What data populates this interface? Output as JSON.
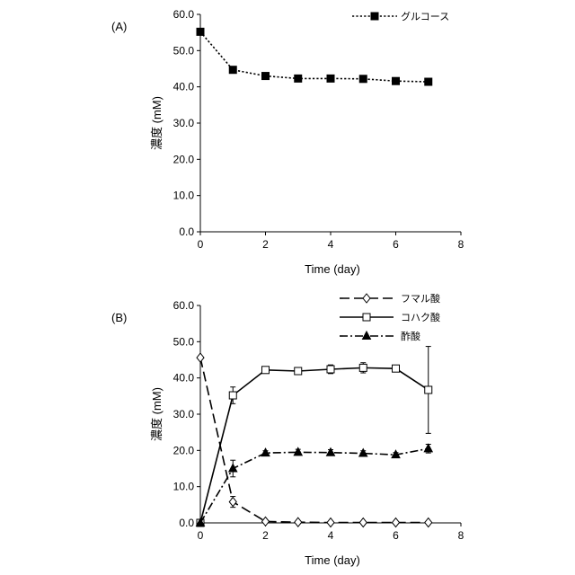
{
  "chart_data": [
    {
      "panel": "(A)",
      "type": "line",
      "xlabel": "Time (day)",
      "ylabel": "濃度 (mM)",
      "xlim": [
        0,
        8
      ],
      "ylim": [
        0,
        60
      ],
      "xticks": [
        "0",
        "2",
        "4",
        "6",
        "8"
      ],
      "yticks": [
        "0.0",
        "10.0",
        "20.0",
        "30.0",
        "40.0",
        "50.0",
        "60.0"
      ],
      "legend_position": "top-right",
      "series": [
        {
          "name": "グルコース",
          "marker": "filled-square",
          "line": "dotted",
          "x": [
            0,
            1,
            2,
            3,
            4,
            5,
            6,
            7
          ],
          "values": [
            55.2,
            44.7,
            43.0,
            42.3,
            42.3,
            42.2,
            41.6,
            41.4
          ],
          "errors": [
            0,
            0,
            0,
            0,
            0,
            0,
            0,
            0
          ]
        }
      ]
    },
    {
      "panel": "(B)",
      "type": "line",
      "xlabel": "Time (day)",
      "ylabel": "濃度 (mM)",
      "xlim": [
        0,
        8
      ],
      "ylim": [
        0,
        60
      ],
      "xticks": [
        "0",
        "2",
        "4",
        "6",
        "8"
      ],
      "yticks": [
        "0.0",
        "10.0",
        "20.0",
        "30.0",
        "40.0",
        "50.0",
        "60.0"
      ],
      "legend_position": "top-right",
      "series": [
        {
          "name": "フマル酸",
          "marker": "open-diamond",
          "line": "dashed",
          "x": [
            0,
            1,
            2,
            3,
            4,
            5,
            6,
            7
          ],
          "values": [
            45.6,
            5.8,
            0.4,
            0.2,
            0.1,
            0.1,
            0.1,
            0.1
          ],
          "errors": [
            0,
            1.5,
            0,
            0,
            0,
            0,
            0,
            0
          ]
        },
        {
          "name": "コハク酸",
          "marker": "open-square",
          "line": "solid",
          "x": [
            0,
            1,
            2,
            3,
            4,
            5,
            6,
            7
          ],
          "values": [
            0.0,
            35.2,
            42.2,
            41.9,
            42.4,
            42.8,
            42.6,
            36.7
          ],
          "errors": [
            0,
            2.3,
            0.5,
            0.5,
            1.2,
            1.4,
            0.5,
            12.0
          ]
        },
        {
          "name": "酢酸",
          "marker": "filled-triangle",
          "line": "dash-dot",
          "x": [
            0,
            1,
            2,
            3,
            4,
            5,
            6,
            7
          ],
          "values": [
            0.0,
            15.0,
            19.3,
            19.5,
            19.4,
            19.2,
            18.8,
            20.5
          ],
          "errors": [
            0,
            2.3,
            0.6,
            0.8,
            0.8,
            0.7,
            0.6,
            1.2
          ]
        }
      ]
    }
  ]
}
